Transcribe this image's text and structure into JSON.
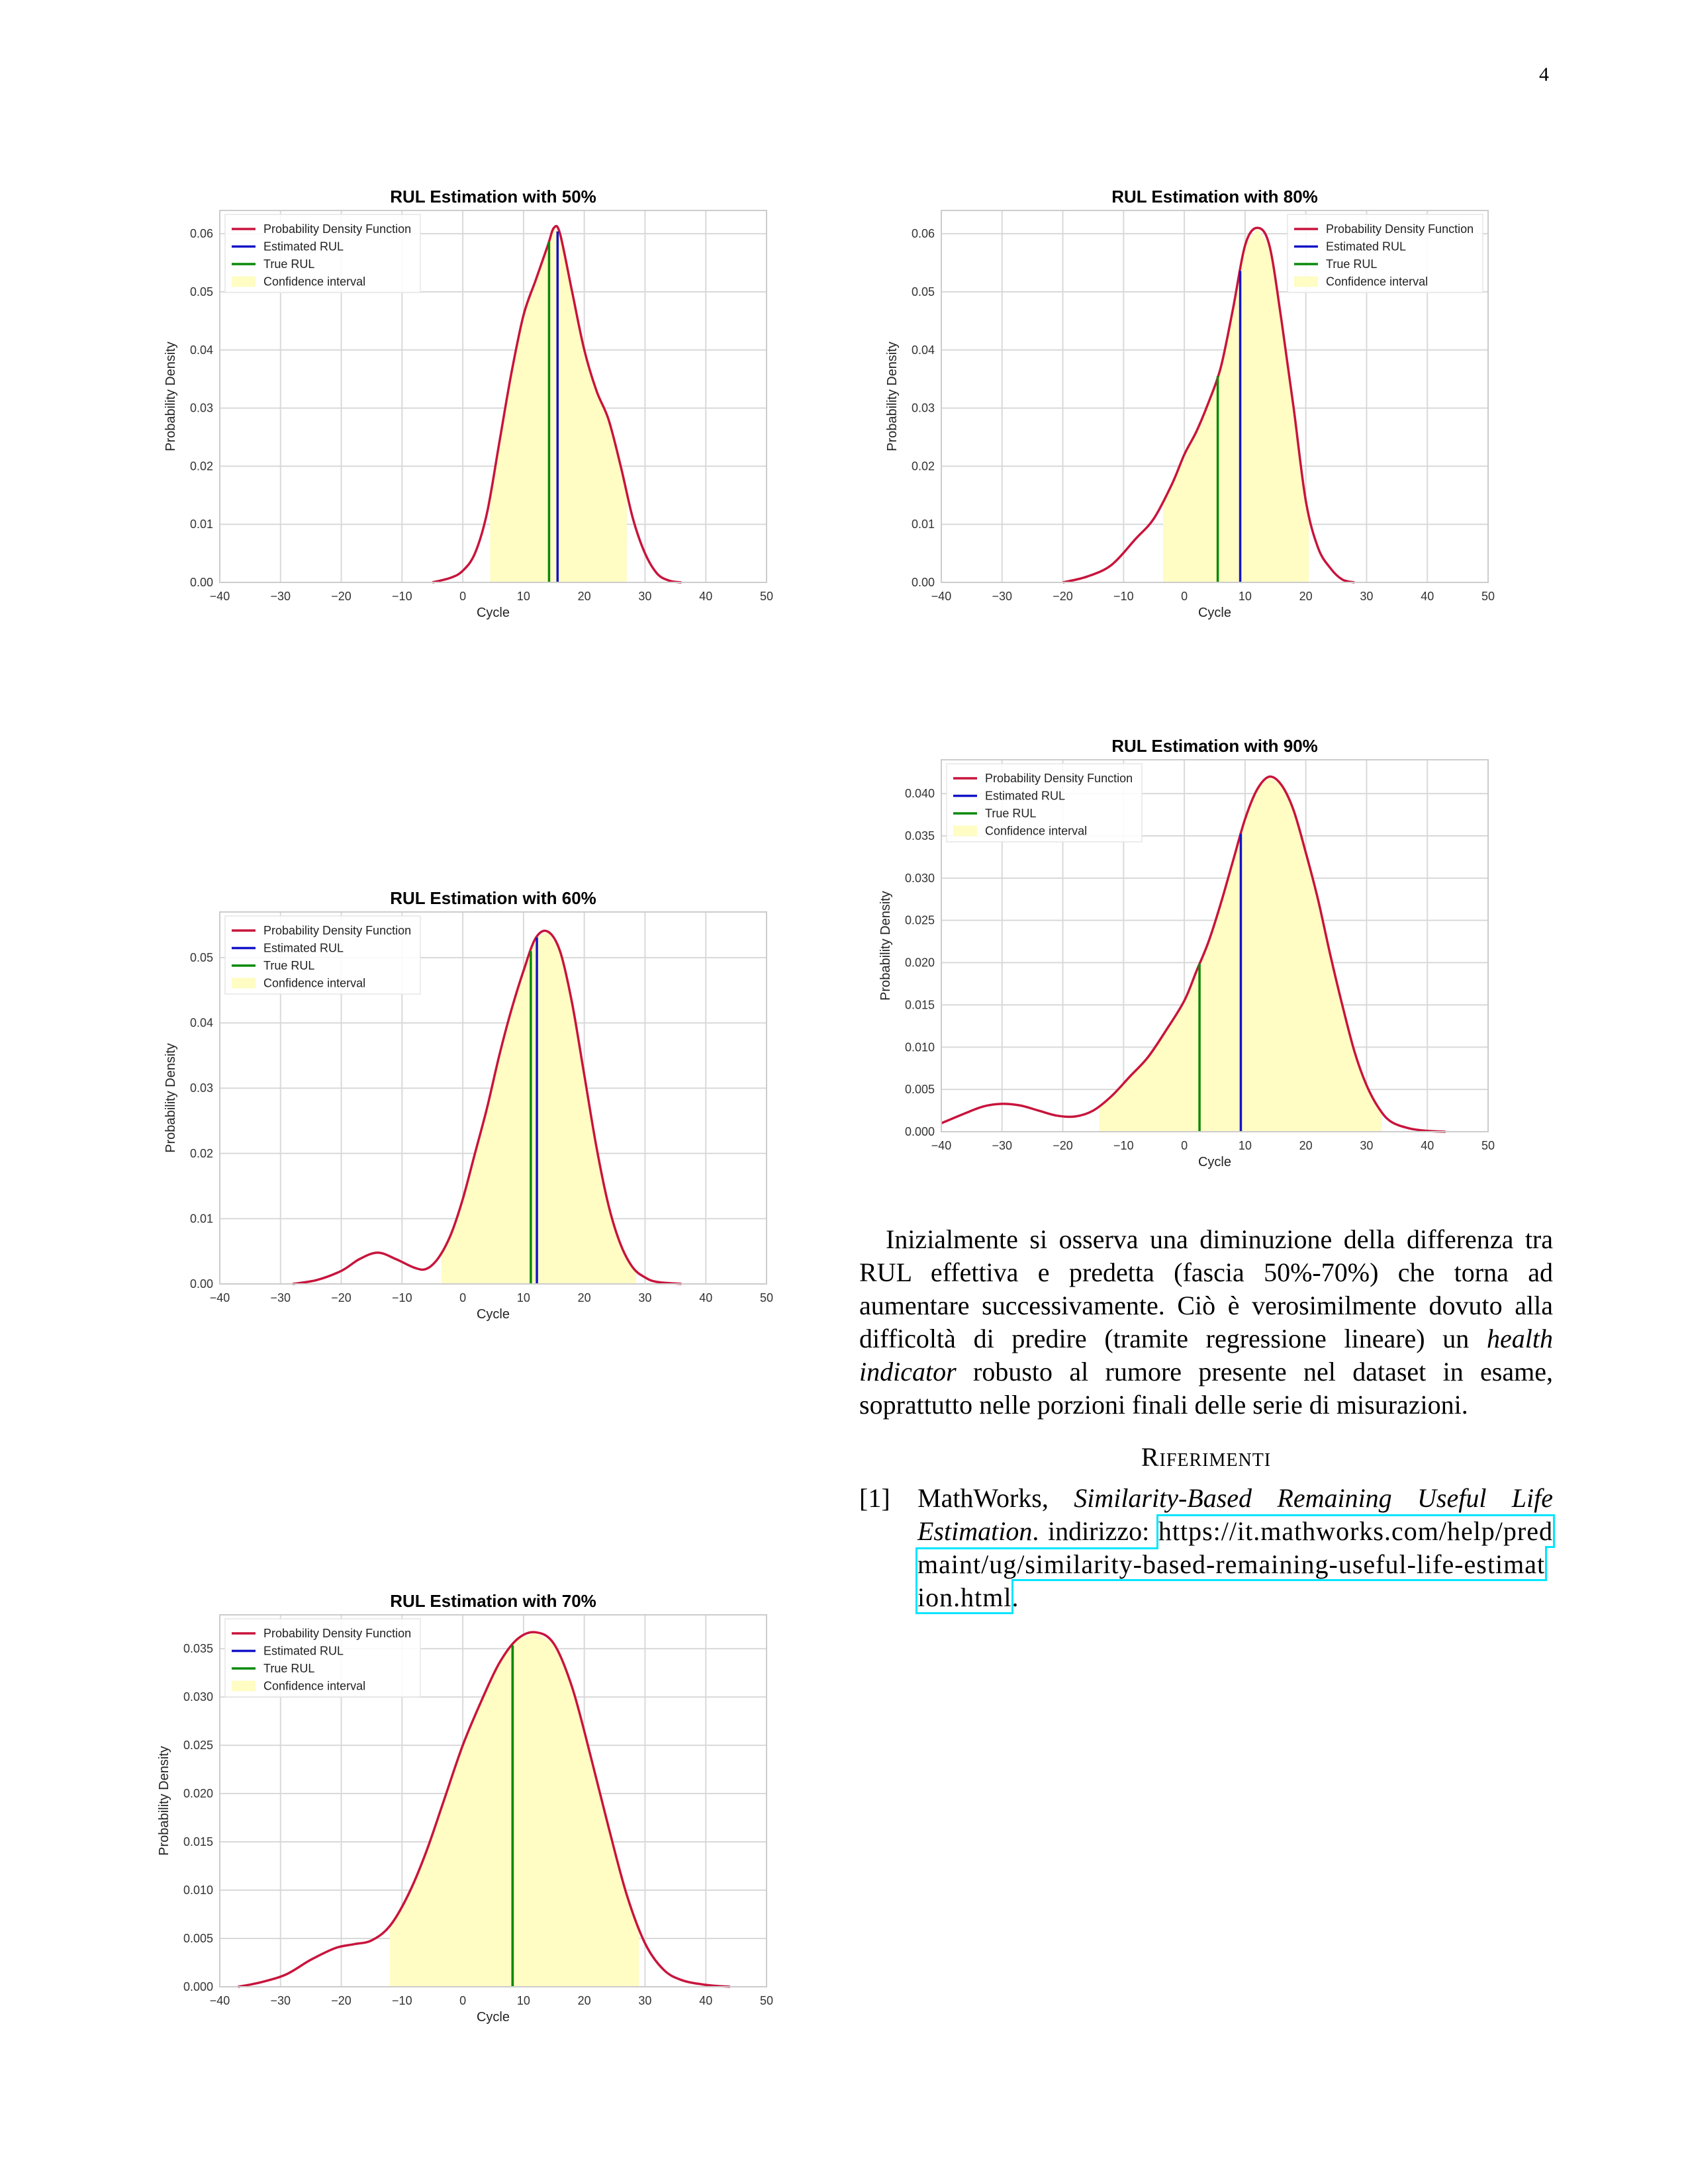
{
  "page_number": "4",
  "legend_labels": {
    "pdf": "Probability Density Function",
    "estimated": "Estimated RUL",
    "true": "True RUL",
    "ci": "Confidence interval"
  },
  "colors": {
    "pdf": "#c8143c",
    "estimated": "#1414c8",
    "true": "#0a8a0a",
    "ci": "#fffcc4",
    "grid": "#d9d9d9",
    "link_box": "#00e5ff"
  },
  "chart_data": [
    {
      "id": "rul-50",
      "type": "line",
      "title": "RUL Estimation with 50%",
      "xlabel": "Cycle",
      "ylabel": "Probability Density",
      "xlim": [
        -40,
        50
      ],
      "ylim": [
        0,
        0.064
      ],
      "xticks": [
        -40,
        -30,
        -20,
        -10,
        0,
        10,
        20,
        30,
        40,
        50
      ],
      "xtick_labels": [
        "−40",
        "−30",
        "−20",
        "−10",
        "0",
        "10",
        "20",
        "30",
        "40",
        "50"
      ],
      "yticks": [
        0,
        0.01,
        0.02,
        0.03,
        0.04,
        0.05,
        0.06
      ],
      "ytick_labels": [
        "0.00",
        "0.01",
        "0.02",
        "0.03",
        "0.04",
        "0.05",
        "0.06"
      ],
      "legend_position": "top-left",
      "pdf_x": [
        -5,
        -2,
        0,
        2,
        4,
        6,
        8,
        10,
        12,
        14,
        15,
        16,
        18,
        20,
        22,
        24,
        26,
        28,
        30,
        32,
        34,
        36
      ],
      "pdf_y": [
        0,
        0.0008,
        0.002,
        0.005,
        0.012,
        0.024,
        0.036,
        0.046,
        0.052,
        0.058,
        0.061,
        0.06,
        0.05,
        0.04,
        0.033,
        0.028,
        0.02,
        0.011,
        0.005,
        0.0015,
        0.0003,
        0
      ],
      "ci": [
        4.5,
        27
      ],
      "estimated_rul": 15.6,
      "true_rul": 14.2
    },
    {
      "id": "rul-80",
      "type": "line",
      "title": "RUL Estimation with 80%",
      "xlabel": "Cycle",
      "ylabel": "Probability Density",
      "xlim": [
        -40,
        50
      ],
      "ylim": [
        0,
        0.064
      ],
      "xticks": [
        -40,
        -30,
        -20,
        -10,
        0,
        10,
        20,
        30,
        40,
        50
      ],
      "xtick_labels": [
        "−40",
        "−30",
        "−20",
        "−10",
        "0",
        "10",
        "20",
        "30",
        "40",
        "50"
      ],
      "yticks": [
        0,
        0.01,
        0.02,
        0.03,
        0.04,
        0.05,
        0.06
      ],
      "ytick_labels": [
        "0.00",
        "0.01",
        "0.02",
        "0.03",
        "0.04",
        "0.05",
        "0.06"
      ],
      "legend_position": "top-right",
      "pdf_x": [
        -20,
        -16,
        -12,
        -8,
        -5,
        -2,
        0,
        2,
        4,
        6,
        8,
        10,
        12,
        14,
        16,
        18,
        20,
        22,
        24,
        26,
        28
      ],
      "pdf_y": [
        0,
        0.001,
        0.003,
        0.0075,
        0.011,
        0.017,
        0.022,
        0.026,
        0.031,
        0.037,
        0.047,
        0.058,
        0.061,
        0.058,
        0.045,
        0.03,
        0.014,
        0.006,
        0.0025,
        0.0005,
        0
      ],
      "ci": [
        -3.5,
        20.5
      ],
      "estimated_rul": 9.2,
      "true_rul": 5.5
    },
    {
      "id": "rul-60",
      "type": "line",
      "title": "RUL Estimation with 60%",
      "xlabel": "Cycle",
      "ylabel": "Probability Density",
      "xlim": [
        -40,
        50
      ],
      "ylim": [
        0,
        0.057
      ],
      "xticks": [
        -40,
        -30,
        -20,
        -10,
        0,
        10,
        20,
        30,
        40,
        50
      ],
      "xtick_labels": [
        "−40",
        "−30",
        "−20",
        "−10",
        "0",
        "10",
        "20",
        "30",
        "40",
        "50"
      ],
      "yticks": [
        0,
        0.01,
        0.02,
        0.03,
        0.04,
        0.05
      ],
      "ytick_labels": [
        "0.00",
        "0.01",
        "0.02",
        "0.03",
        "0.04",
        "0.05"
      ],
      "legend_position": "top-left",
      "pdf_x": [
        -28,
        -24,
        -20,
        -17,
        -14,
        -11,
        -8,
        -6,
        -4,
        -2,
        0,
        2,
        4,
        6,
        8,
        10,
        12,
        14,
        16,
        18,
        20,
        22,
        24,
        26,
        28,
        30,
        32,
        36
      ],
      "pdf_y": [
        0,
        0.0006,
        0.002,
        0.0038,
        0.0048,
        0.0038,
        0.0025,
        0.0023,
        0.004,
        0.0075,
        0.013,
        0.02,
        0.027,
        0.035,
        0.042,
        0.048,
        0.053,
        0.054,
        0.051,
        0.043,
        0.032,
        0.021,
        0.012,
        0.006,
        0.0025,
        0.001,
        0.0003,
        0
      ],
      "ci": [
        -3.5,
        28.5
      ],
      "estimated_rul": 12.2,
      "true_rul": 11.2
    },
    {
      "id": "rul-90",
      "type": "line",
      "title": "RUL Estimation with 90%",
      "xlabel": "Cycle",
      "ylabel": "Probability Density",
      "xlim": [
        -40,
        50
      ],
      "ylim": [
        0,
        0.044
      ],
      "xticks": [
        -40,
        -30,
        -20,
        -10,
        0,
        10,
        20,
        30,
        40,
        50
      ],
      "xtick_labels": [
        "−40",
        "−30",
        "−20",
        "−10",
        "0",
        "10",
        "20",
        "30",
        "40",
        "50"
      ],
      "yticks": [
        0,
        0.005,
        0.01,
        0.015,
        0.02,
        0.025,
        0.03,
        0.035,
        0.04
      ],
      "ytick_labels": [
        "0.000",
        "0.005",
        "0.010",
        "0.015",
        "0.020",
        "0.025",
        "0.030",
        "0.035",
        "0.040"
      ],
      "legend_position": "top-left",
      "pdf_x": [
        -40,
        -36,
        -33,
        -30,
        -27,
        -24,
        -21,
        -18,
        -15,
        -12,
        -9,
        -6,
        -3,
        0,
        2,
        4,
        6,
        8,
        10,
        12,
        14,
        16,
        18,
        20,
        22,
        24,
        26,
        28,
        30,
        32,
        34,
        37,
        40,
        43
      ],
      "pdf_y": [
        0.001,
        0.0022,
        0.003,
        0.0033,
        0.0031,
        0.0025,
        0.0019,
        0.0018,
        0.0025,
        0.0042,
        0.0065,
        0.0088,
        0.012,
        0.0155,
        0.019,
        0.0225,
        0.027,
        0.032,
        0.037,
        0.0405,
        0.042,
        0.041,
        0.038,
        0.033,
        0.0275,
        0.021,
        0.015,
        0.0095,
        0.0055,
        0.0028,
        0.0012,
        0.0004,
        0.0001,
        0
      ],
      "ci": [
        -14,
        32.5
      ],
      "estimated_rul": 9.3,
      "true_rul": 2.5
    },
    {
      "id": "rul-70",
      "type": "line",
      "title": "RUL Estimation with 70%",
      "xlabel": "Cycle",
      "ylabel": "Probability Density",
      "xlim": [
        -40,
        50
      ],
      "ylim": [
        0,
        0.0385
      ],
      "xticks": [
        -40,
        -30,
        -20,
        -10,
        0,
        10,
        20,
        30,
        40,
        50
      ],
      "xtick_labels": [
        "−40",
        "−30",
        "−20",
        "−10",
        "0",
        "10",
        "20",
        "30",
        "40",
        "50"
      ],
      "yticks": [
        0,
        0.005,
        0.01,
        0.015,
        0.02,
        0.025,
        0.03,
        0.035
      ],
      "ytick_labels": [
        "0.000",
        "0.005",
        "0.010",
        "0.015",
        "0.020",
        "0.025",
        "0.030",
        "0.035"
      ],
      "legend_position": "top-left",
      "pdf_x": [
        -37,
        -33,
        -29,
        -25,
        -21,
        -18,
        -15,
        -12,
        -9,
        -6,
        -3,
        0,
        3,
        6,
        9,
        12,
        15,
        18,
        21,
        24,
        27,
        30,
        33,
        36,
        40,
        44
      ],
      "pdf_y": [
        0,
        0.0005,
        0.0013,
        0.0028,
        0.004,
        0.0044,
        0.0048,
        0.0063,
        0.0095,
        0.014,
        0.0195,
        0.025,
        0.0295,
        0.0335,
        0.036,
        0.0367,
        0.0355,
        0.031,
        0.024,
        0.0165,
        0.0095,
        0.0045,
        0.0018,
        0.0007,
        0.0002,
        0
      ],
      "ci": [
        -12,
        29
      ],
      "estimated_rul": 8.2,
      "true_rul": 8.2
    }
  ],
  "body_text": {
    "p1": "Inizialmente si osserva una diminuzione della differenza tra RUL effettiva e predetta (fascia 50%-70%) che torna ad aumentare successivamente. Ciò è verosimilmente dovuto alla difficoltà di predire (tramite regressione lineare) un ",
    "p1_em1": "health indicator",
    "p1_end": " robusto al rumore presente nel dataset in esame, soprattutto nelle porzioni finali delle serie di misurazioni."
  },
  "references": {
    "heading": "Riferimenti",
    "items": [
      {
        "num": "[1]",
        "author": "MathWorks, ",
        "title": "Similarity-Based Remaining Useful Life Estimation",
        "mid": ". indirizzo: ",
        "url": "https://it.mathworks.com/help/predmaint/ug/similarity-based-remaining-useful-life-estimation.html",
        "end": "."
      }
    ]
  }
}
